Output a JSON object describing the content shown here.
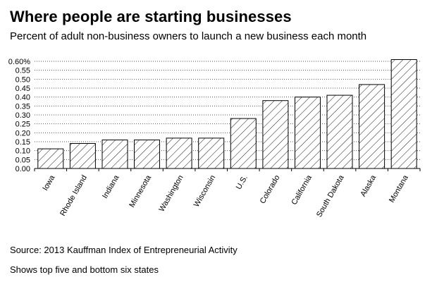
{
  "title": "Where people are starting businesses",
  "subtitle": "Percent of adult non-business owners to launch a new business each month",
  "source": "Source: 2013 Kauffman Index of Entrepreneurial Activity",
  "note": "Shows top five and bottom six states",
  "chart_data": {
    "type": "bar",
    "categories": [
      "Iowa",
      "Rhode Island",
      "Indiana",
      "Minnesota",
      "Washington",
      "Wisconsin",
      "U.S.",
      "Colorado",
      "California",
      "South Dakota",
      "Alaska",
      "Montana"
    ],
    "values": [
      0.11,
      0.14,
      0.16,
      0.16,
      0.17,
      0.17,
      0.28,
      0.38,
      0.4,
      0.41,
      0.47,
      0.61
    ],
    "ylim": [
      0,
      0.6
    ],
    "yticks": [
      "0.00",
      "0.05",
      "0.10",
      "0.15",
      "0.20",
      "0.25",
      "0.30",
      "0.35",
      "0.40",
      "0.45",
      "0.50",
      "0.55",
      "0.60%"
    ],
    "bar_fill": "diagonal hatch",
    "grid": true,
    "colors": {
      "bar_stroke": "#000000",
      "bar_fill": "#ffffff",
      "grid": "#555555"
    }
  }
}
